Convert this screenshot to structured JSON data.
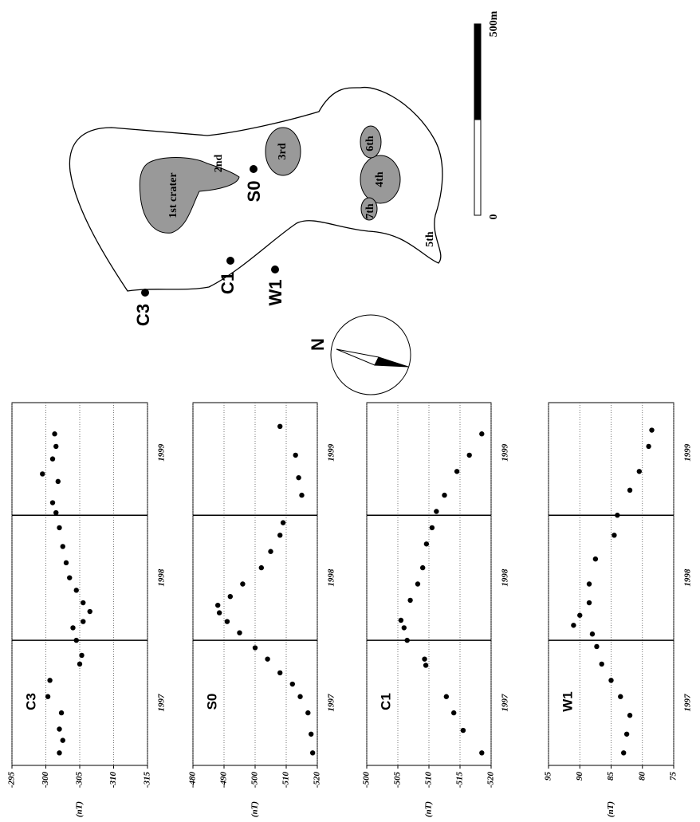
{
  "chart_data": [
    {
      "type": "scatter",
      "title": "C3",
      "y_label": "(nT)",
      "color": "#000000",
      "grid": true,
      "xlim": [
        1997.0,
        1999.9
      ],
      "xticks": [
        {
          "value": 1997.5,
          "label": "1997"
        },
        {
          "value": 1998.5,
          "label": "1998"
        },
        {
          "value": 1999.5,
          "label": "1999"
        }
      ],
      "vlines": [
        1998,
        1999
      ],
      "ylim": [
        -315,
        -295
      ],
      "yticks": [
        -295,
        -300,
        -305,
        -310,
        -315
      ],
      "x": [
        1997.1,
        1997.2,
        1997.29,
        1997.42,
        1997.55,
        1997.68,
        1997.81,
        1997.88,
        1998.0,
        1998.1,
        1998.15,
        1998.23,
        1998.3,
        1998.4,
        1998.5,
        1998.62,
        1998.75,
        1998.9,
        1999.02,
        1999.1,
        1999.27,
        1999.33,
        1999.45,
        1999.55,
        1999.65
      ],
      "values": [
        -302,
        -302.5,
        -302,
        -302.3,
        -300.3,
        -300.6,
        -305,
        -305.3,
        -304.5,
        -304,
        -305.5,
        -306.5,
        -305.5,
        -304.5,
        -303.5,
        -303,
        -302.5,
        -302,
        -301.5,
        -301,
        -301.8,
        -299.5,
        -301,
        -301.5,
        -301.3
      ]
    },
    {
      "type": "scatter",
      "title": "S0",
      "y_label": "(nT)",
      "color": "#000000",
      "grid": true,
      "xlim": [
        1997.0,
        1999.9
      ],
      "xticks": [
        {
          "value": 1997.5,
          "label": "1997"
        },
        {
          "value": 1998.5,
          "label": "1998"
        },
        {
          "value": 1999.5,
          "label": "1999"
        }
      ],
      "vlines": [
        1998,
        1999
      ],
      "ylim": [
        -520,
        -480
      ],
      "yticks": [
        -480,
        -490,
        -500,
        -510,
        -520
      ],
      "x": [
        1997.1,
        1997.25,
        1997.42,
        1997.55,
        1997.65,
        1997.74,
        1997.85,
        1997.94,
        1998.06,
        1998.15,
        1998.22,
        1998.28,
        1998.35,
        1998.45,
        1998.58,
        1998.71,
        1998.84,
        1998.94,
        1999.16,
        1999.3,
        1999.48,
        1999.71
      ],
      "values": [
        -518.5,
        -518,
        -517,
        -514.5,
        -512,
        -508,
        -504,
        -500,
        -495,
        -491,
        -488.5,
        -488,
        -492,
        -496,
        -502,
        -505,
        -508,
        -509,
        -515,
        -514,
        -513,
        -508
      ]
    },
    {
      "type": "scatter",
      "title": "C1",
      "y_label": "(nT)",
      "color": "#000000",
      "grid": true,
      "xlim": [
        1997.0,
        1999.9
      ],
      "xticks": [
        {
          "value": 1997.5,
          "label": "1997"
        },
        {
          "value": 1998.5,
          "label": "1998"
        },
        {
          "value": 1999.5,
          "label": "1999"
        }
      ],
      "vlines": [
        1998,
        1999
      ],
      "ylim": [
        -520,
        -500
      ],
      "yticks": [
        -500,
        -505,
        -510,
        -515,
        -520
      ],
      "x": [
        1997.1,
        1997.28,
        1997.42,
        1997.55,
        1997.8,
        1997.85,
        1998.0,
        1998.1,
        1998.16,
        1998.32,
        1998.45,
        1998.58,
        1998.77,
        1998.9,
        1999.03,
        1999.16,
        1999.35,
        1999.48,
        1999.65
      ],
      "values": [
        -518.5,
        -515.5,
        -514,
        -512.8,
        -509.5,
        -509.3,
        -506.5,
        -506,
        -505.5,
        -507,
        -508.2,
        -509,
        -509.6,
        -510.5,
        -511.2,
        -512.5,
        -514.5,
        -516.5,
        -518.5
      ]
    },
    {
      "type": "scatter",
      "title": "W1",
      "y_label": "(nT)",
      "color": "#000000",
      "grid": true,
      "xlim": [
        1997.0,
        1999.9
      ],
      "xticks": [
        {
          "value": 1997.5,
          "label": "1997"
        },
        {
          "value": 1998.5,
          "label": "1998"
        },
        {
          "value": 1999.5,
          "label": "1999"
        }
      ],
      "vlines": [
        1998,
        1999
      ],
      "ylim": [
        75,
        95
      ],
      "yticks": [
        95,
        90,
        85,
        80,
        75
      ],
      "x": [
        1997.1,
        1997.25,
        1997.4,
        1997.55,
        1997.68,
        1997.81,
        1997.95,
        1998.05,
        1998.12,
        1998.2,
        1998.3,
        1998.45,
        1998.65,
        1998.84,
        1999.0,
        1999.2,
        1999.35,
        1999.55,
        1999.68
      ],
      "values": [
        83,
        82.5,
        82,
        83.5,
        85,
        86.5,
        87.3,
        88,
        91,
        90,
        88.5,
        88.5,
        87.5,
        84.5,
        84,
        82,
        80.5,
        79,
        78.5
      ]
    }
  ],
  "map": {
    "craters": [
      "1st crater",
      "2nd",
      "3rd",
      "4th",
      "5th",
      "6th",
      "7th"
    ],
    "stations": [
      "C3",
      "C1",
      "S0",
      "W1"
    ],
    "scale": [
      "0",
      "500m"
    ],
    "north": "N"
  }
}
